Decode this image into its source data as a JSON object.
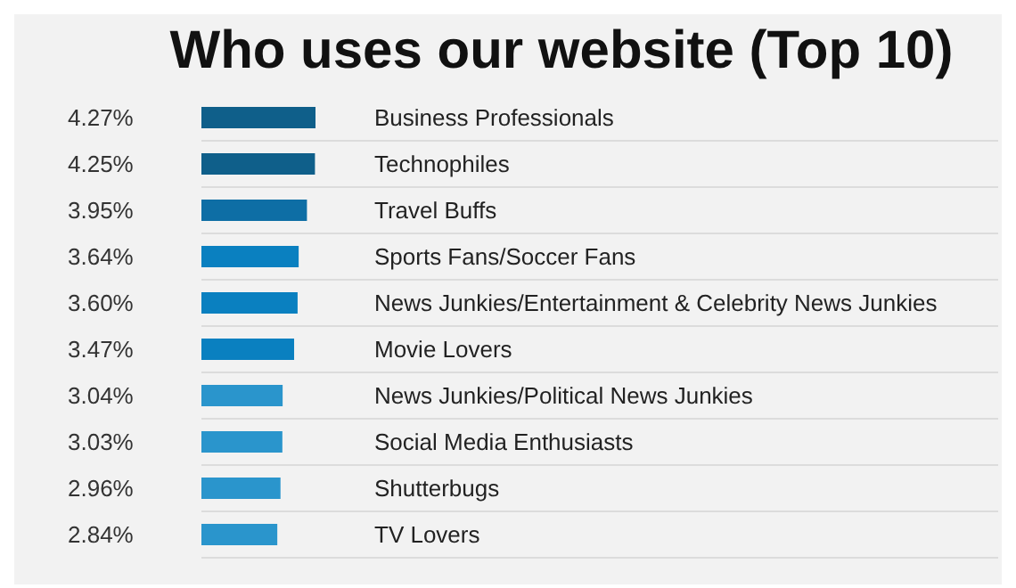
{
  "chart_data": {
    "type": "bar",
    "orientation": "horizontal",
    "title": "Who uses our website (Top 10)",
    "categories": [
      "Business Professionals",
      "Technophiles",
      "Travel Buffs",
      "Sports Fans/Soccer Fans",
      "News Junkies/Entertainment & Celebrity News Junkies",
      "Movie Lovers",
      "News Junkies/Political News Junkies",
      "Social Media Enthusiasts",
      "Shutterbugs",
      "TV Lovers"
    ],
    "values": [
      4.27,
      4.25,
      3.95,
      3.64,
      3.6,
      3.47,
      3.04,
      3.03,
      2.96,
      2.84
    ],
    "value_labels": [
      "4.27%",
      "4.25%",
      "3.95%",
      "3.64%",
      "3.60%",
      "3.47%",
      "3.04%",
      "3.03%",
      "2.96%",
      "2.84%"
    ],
    "colors": [
      "#0f5f8a",
      "#0f5f8a",
      "#0e6ea5",
      "#0a80c0",
      "#0a80c0",
      "#0a80c0",
      "#2a95cc",
      "#2a95cc",
      "#2a95cc",
      "#2a95cc"
    ],
    "grid": "y"
  }
}
